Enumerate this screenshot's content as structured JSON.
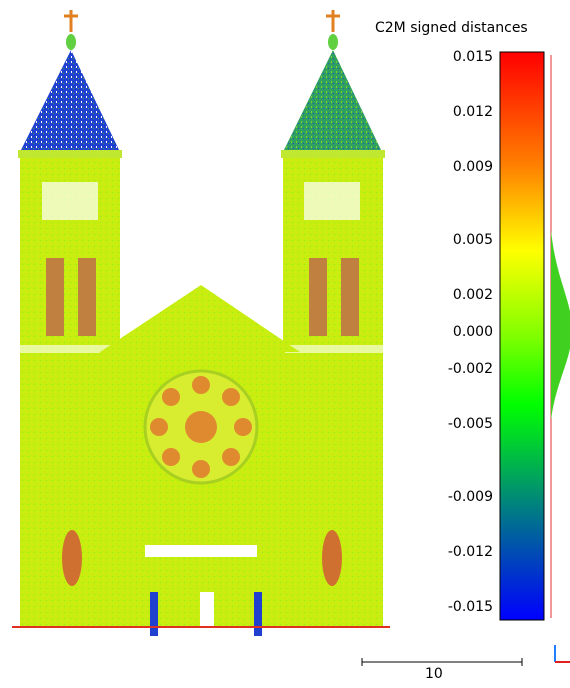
{
  "viewer": {
    "scale_title": "C2M signed distances",
    "scale_labels": [
      "0.015",
      "0.012",
      "0.009",
      "0.005",
      "0.002",
      "0.000",
      "-0.002",
      "-0.005",
      "-0.009",
      "-0.012",
      "-0.015"
    ],
    "scale_values": [
      0.015,
      0.012,
      0.009,
      0.005,
      0.002,
      0.0,
      -0.002,
      -0.005,
      -0.009,
      -0.012,
      -0.015
    ],
    "scale_range": [
      -0.015,
      0.015
    ],
    "ruler_label": "10",
    "colors": {
      "facade": "#c8f000",
      "spire": "#2030d0",
      "spire_right": "#208060",
      "red_noise": "#e03020",
      "axis_red": "#e02020",
      "axis_blue": "#2080ff"
    }
  }
}
